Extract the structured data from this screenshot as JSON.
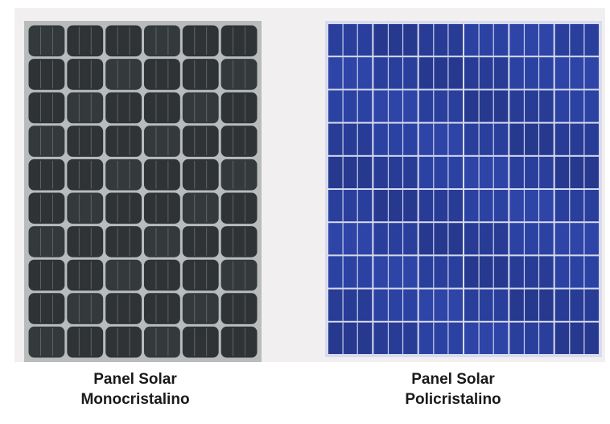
{
  "left_panel": {
    "type": "monocrystalline",
    "caption_line1": "Panel Solar",
    "caption_line2": "Monocristalino",
    "cell_color": "#2f3335",
    "gap_color": "#b8bcbd",
    "columns": 6,
    "rows": 10
  },
  "right_panel": {
    "type": "polycrystalline",
    "caption_line1": "Panel Solar",
    "caption_line2": "Policristalino",
    "cell_color": "#2a3f9c",
    "gap_color": "#d6dbef",
    "columns": 6,
    "rows": 10
  }
}
